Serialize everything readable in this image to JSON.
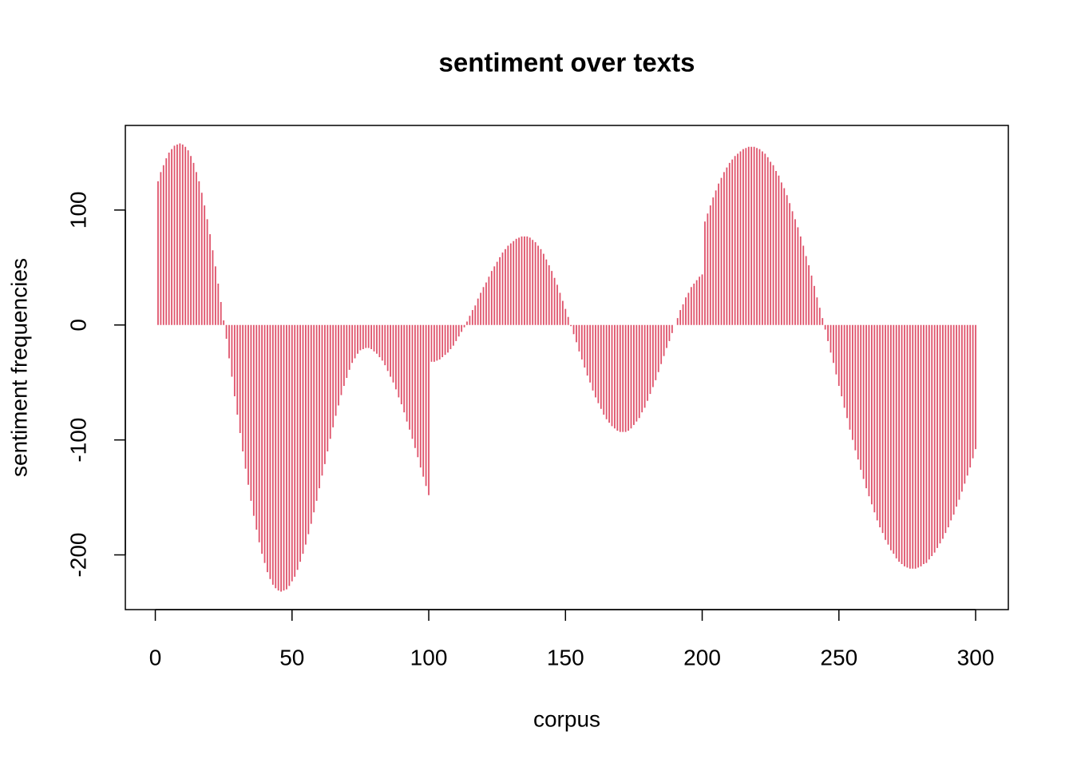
{
  "chart_data": {
    "type": "bar",
    "title": "sentiment over texts",
    "x_label": "corpus",
    "y_label": "sentiment frequencies",
    "color": "#DF536B",
    "x": [
      1,
      2,
      3,
      4,
      5,
      6,
      7,
      8,
      9,
      10,
      11,
      12,
      13,
      14,
      15,
      16,
      17,
      18,
      19,
      20,
      21,
      22,
      23,
      24,
      25,
      26,
      27,
      28,
      29,
      30,
      31,
      32,
      33,
      34,
      35,
      36,
      37,
      38,
      39,
      40,
      41,
      42,
      43,
      44,
      45,
      46,
      47,
      48,
      49,
      50,
      51,
      52,
      53,
      54,
      55,
      56,
      57,
      58,
      59,
      60,
      61,
      62,
      63,
      64,
      65,
      66,
      67,
      68,
      69,
      70,
      71,
      72,
      73,
      74,
      75,
      76,
      77,
      78,
      79,
      80,
      81,
      82,
      83,
      84,
      85,
      86,
      87,
      88,
      89,
      90,
      91,
      92,
      93,
      94,
      95,
      96,
      97,
      98,
      99,
      100,
      101,
      102,
      103,
      104,
      105,
      106,
      107,
      108,
      109,
      110,
      111,
      112,
      113,
      114,
      115,
      116,
      117,
      118,
      119,
      120,
      121,
      122,
      123,
      124,
      125,
      126,
      127,
      128,
      129,
      130,
      131,
      132,
      133,
      134,
      135,
      136,
      137,
      138,
      139,
      140,
      141,
      142,
      143,
      144,
      145,
      146,
      147,
      148,
      149,
      150,
      151,
      152,
      153,
      154,
      155,
      156,
      157,
      158,
      159,
      160,
      161,
      162,
      163,
      164,
      165,
      166,
      167,
      168,
      169,
      170,
      171,
      172,
      173,
      174,
      175,
      176,
      177,
      178,
      179,
      180,
      181,
      182,
      183,
      184,
      185,
      186,
      187,
      188,
      189,
      190,
      191,
      192,
      193,
      194,
      195,
      196,
      197,
      198,
      199,
      200,
      201,
      202,
      203,
      204,
      205,
      206,
      207,
      208,
      209,
      210,
      211,
      212,
      213,
      214,
      215,
      216,
      217,
      218,
      219,
      220,
      221,
      222,
      223,
      224,
      225,
      226,
      227,
      228,
      229,
      230,
      231,
      232,
      233,
      234,
      235,
      236,
      237,
      238,
      239,
      240,
      241,
      242,
      243,
      244,
      245,
      246,
      247,
      248,
      249,
      250,
      251,
      252,
      253,
      254,
      255,
      256,
      257,
      258,
      259,
      260,
      261,
      262,
      263,
      264,
      265,
      266,
      267,
      268,
      269,
      270,
      271,
      272,
      273,
      274,
      275,
      276,
      277,
      278,
      279,
      280,
      281,
      282,
      283,
      284,
      285,
      286,
      287,
      288,
      289,
      290,
      291,
      292,
      293,
      294,
      295,
      296,
      297,
      298,
      299,
      300
    ],
    "values": [
      125,
      133,
      139,
      145,
      150,
      153,
      156,
      157,
      158,
      157,
      155,
      152,
      147,
      141,
      133,
      125,
      115,
      104,
      92,
      79,
      65,
      51,
      36,
      20,
      4,
      -12,
      -29,
      -45,
      -62,
      -78,
      -94,
      -110,
      -125,
      -139,
      -153,
      -166,
      -178,
      -189,
      -199,
      -207,
      -215,
      -221,
      -226,
      -229,
      -231,
      -232,
      -231,
      -230,
      -227,
      -223,
      -219,
      -213,
      -206,
      -199,
      -191,
      -182,
      -173,
      -163,
      -153,
      -142,
      -131,
      -121,
      -110,
      -99,
      -89,
      -79,
      -70,
      -61,
      -53,
      -46,
      -39,
      -33,
      -29,
      -25,
      -22,
      -21,
      -20,
      -20,
      -21,
      -23,
      -25,
      -28,
      -31,
      -35,
      -40,
      -45,
      -50,
      -56,
      -63,
      -69,
      -76,
      -84,
      -91,
      -99,
      -107,
      -115,
      -124,
      -132,
      -140,
      -148,
      -32,
      -32,
      -31,
      -30,
      -28,
      -26,
      -24,
      -21,
      -18,
      -14,
      -10,
      -6,
      -2,
      3,
      8,
      13,
      17,
      23,
      28,
      33,
      37,
      42,
      47,
      51,
      55,
      59,
      63,
      66,
      69,
      71,
      73,
      75,
      76,
      77,
      77,
      77,
      76,
      74,
      72,
      69,
      66,
      62,
      57,
      52,
      47,
      41,
      35,
      28,
      21,
      14,
      7,
      -1,
      -8,
      -15,
      -23,
      -30,
      -37,
      -44,
      -50,
      -57,
      -63,
      -68,
      -73,
      -78,
      -82,
      -85,
      -88,
      -90,
      -92,
      -93,
      -93,
      -93,
      -92,
      -90,
      -87,
      -84,
      -81,
      -76,
      -72,
      -66,
      -60,
      -54,
      -48,
      -41,
      -34,
      -27,
      -20,
      -14,
      -7,
      0,
      6,
      13,
      18,
      24,
      28,
      33,
      36,
      39,
      42,
      44,
      90,
      97,
      104,
      111,
      117,
      123,
      128,
      133,
      137,
      141,
      144,
      147,
      149,
      151,
      153,
      154,
      155,
      155,
      155,
      154,
      153,
      151,
      149,
      146,
      142,
      139,
      134,
      130,
      124,
      119,
      113,
      106,
      99,
      92,
      85,
      77,
      69,
      60,
      52,
      43,
      34,
      24,
      15,
      6,
      -4,
      -14,
      -24,
      -33,
      -43,
      -53,
      -62,
      -72,
      -81,
      -91,
      -100,
      -109,
      -117,
      -126,
      -134,
      -142,
      -149,
      -156,
      -163,
      -170,
      -176,
      -181,
      -187,
      -191,
      -196,
      -199,
      -203,
      -206,
      -208,
      -210,
      -211,
      -212,
      -212,
      -212,
      -211,
      -210,
      -208,
      -207,
      -204,
      -201,
      -198,
      -194,
      -190,
      -186,
      -181,
      -176,
      -170,
      -165,
      -158,
      -152,
      -145,
      -138,
      -131,
      -124,
      -116,
      -108
    ],
    "xlim": [
      -10.96,
      311.96
    ],
    "xticks": [
      0,
      50,
      100,
      150,
      200,
      250,
      300
    ],
    "ylim": [
      -247.6,
      173.6
    ],
    "yticks": [
      -200,
      -100,
      0,
      100
    ]
  }
}
